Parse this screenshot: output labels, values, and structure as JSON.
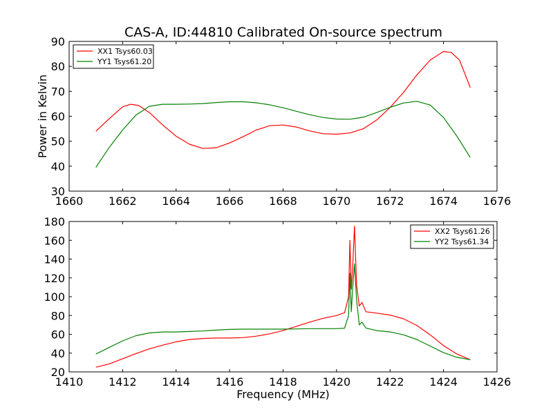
{
  "chart_data": [
    {
      "type": "line",
      "title": "CAS-A, ID:44810 Calibrated On-source spectrum",
      "xlabel": "",
      "ylabel": "Power in Kelvin",
      "xlim": [
        1660,
        1676
      ],
      "ylim": [
        30,
        90
      ],
      "xticks": [
        "1660",
        "1662",
        "1664",
        "1666",
        "1668",
        "1670",
        "1672",
        "1674",
        "1676"
      ],
      "yticks": [
        "30",
        "40",
        "50",
        "60",
        "70",
        "80",
        "90"
      ],
      "legend_position": "top-left",
      "grid": false,
      "series": [
        {
          "name": "XX1 Tsys60.03",
          "color": "#ff0000",
          "x": [
            1661.0,
            1661.5,
            1662.0,
            1662.3,
            1662.6,
            1663.0,
            1663.5,
            1664.0,
            1664.5,
            1665.0,
            1665.5,
            1666.0,
            1666.5,
            1667.0,
            1667.5,
            1668.0,
            1668.5,
            1669.0,
            1669.5,
            1670.0,
            1670.5,
            1671.0,
            1671.5,
            1672.0,
            1672.5,
            1673.0,
            1673.5,
            1674.0,
            1674.3,
            1674.6,
            1675.0
          ],
          "y": [
            54,
            59,
            63.8,
            64.8,
            64.3,
            61.5,
            56.5,
            52,
            48.8,
            47.1,
            47.4,
            49.3,
            51.8,
            54.5,
            56.2,
            56.5,
            55.7,
            54.1,
            53,
            52.8,
            53.3,
            55,
            58.5,
            63.5,
            69.5,
            76.5,
            82.5,
            86,
            85.5,
            82.5,
            71.5
          ]
        },
        {
          "name": "YY1 Tsys61.20",
          "color": "#008000",
          "x": [
            1661.0,
            1661.5,
            1662.0,
            1662.5,
            1663.0,
            1663.5,
            1664.0,
            1664.5,
            1665.0,
            1665.5,
            1666.0,
            1666.5,
            1667.0,
            1667.5,
            1668.0,
            1668.5,
            1669.0,
            1669.5,
            1670.0,
            1670.5,
            1671.0,
            1671.5,
            1672.0,
            1672.5,
            1673.0,
            1673.5,
            1674.0,
            1674.5,
            1675.0
          ],
          "y": [
            39.5,
            47.5,
            54.5,
            60.5,
            64,
            64.8,
            64.8,
            64.9,
            65.1,
            65.5,
            65.8,
            65.8,
            65.4,
            64.6,
            63.4,
            62,
            60.6,
            59.5,
            58.9,
            58.8,
            59.6,
            61.5,
            63.6,
            65.3,
            66,
            64.5,
            59.5,
            52,
            43.5
          ]
        }
      ]
    },
    {
      "type": "line",
      "title": "",
      "xlabel": "Frequency (MHz)",
      "ylabel": "",
      "xlim": [
        1410,
        1426
      ],
      "ylim": [
        20,
        180
      ],
      "xticks": [
        "1410",
        "1412",
        "1414",
        "1416",
        "1418",
        "1420",
        "1422",
        "1424",
        "1426"
      ],
      "yticks": [
        "20",
        "40",
        "60",
        "80",
        "100",
        "120",
        "140",
        "160",
        "180"
      ],
      "legend_position": "top-right",
      "grid": false,
      "series": [
        {
          "name": "XX2 Tsys61.26",
          "color": "#ff0000",
          "x": [
            1411.0,
            1411.5,
            1412.0,
            1412.5,
            1413.0,
            1413.5,
            1414.0,
            1414.5,
            1415.0,
            1415.5,
            1416.0,
            1416.5,
            1417.0,
            1417.5,
            1418.0,
            1418.5,
            1419.0,
            1419.5,
            1420.0,
            1420.3,
            1420.45,
            1420.5,
            1420.55,
            1420.6,
            1420.67,
            1420.75,
            1420.85,
            1420.95,
            1421.1,
            1421.5,
            1422.0,
            1422.5,
            1423.0,
            1423.5,
            1424.0,
            1424.5,
            1425.0
          ],
          "y": [
            25,
            28.5,
            34,
            39.5,
            44.5,
            48.5,
            52,
            54.5,
            55.5,
            56,
            56,
            56.5,
            58,
            60.5,
            64,
            68.5,
            73,
            77,
            80,
            83,
            100,
            160,
            108,
            130,
            175,
            112,
            90,
            94,
            84,
            82.5,
            80.5,
            76.5,
            69.5,
            59.5,
            48,
            39,
            33
          ]
        },
        {
          "name": "YY2 Tsys61.34",
          "color": "#008000",
          "x": [
            1411.0,
            1411.5,
            1412.0,
            1412.5,
            1413.0,
            1413.5,
            1414.0,
            1414.5,
            1415.0,
            1415.5,
            1416.0,
            1416.5,
            1417.0,
            1417.5,
            1418.0,
            1418.5,
            1419.0,
            1419.5,
            1420.0,
            1420.3,
            1420.45,
            1420.5,
            1420.55,
            1420.6,
            1420.67,
            1420.75,
            1420.85,
            1420.95,
            1421.1,
            1421.5,
            1422.0,
            1422.5,
            1423.0,
            1423.5,
            1424.0,
            1424.5,
            1425.0
          ],
          "y": [
            39,
            46,
            53,
            58.5,
            61.5,
            62.5,
            62.5,
            63,
            63.5,
            64.5,
            65.2,
            65.5,
            65.5,
            65.5,
            65.5,
            65.7,
            66,
            66,
            66,
            66.5,
            80,
            125,
            84,
            108,
            135,
            96,
            70,
            73,
            66.5,
            64,
            62.5,
            59.5,
            54.5,
            47.5,
            40.5,
            35.5,
            33
          ]
        }
      ]
    }
  ]
}
